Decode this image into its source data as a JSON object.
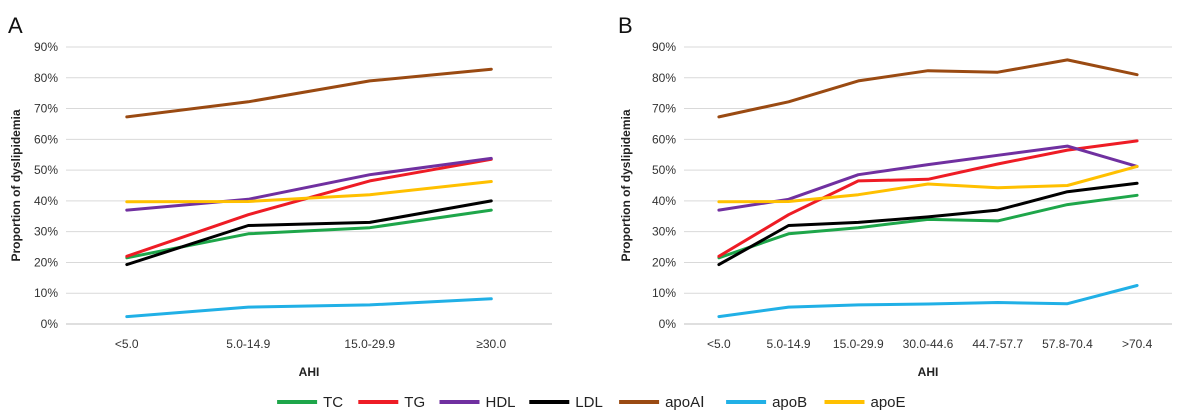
{
  "legend": [
    {
      "name": "TC",
      "color": "#1ea64a"
    },
    {
      "name": "TG",
      "color": "#ee1c25"
    },
    {
      "name": "HDL",
      "color": "#7030a0"
    },
    {
      "name": "LDL",
      "color": "#000000"
    },
    {
      "name": "apoAⅠ",
      "color": "#9a4a12"
    },
    {
      "name": "apoB",
      "color": "#21b0e6"
    },
    {
      "name": "apoE",
      "color": "#ffc000"
    }
  ],
  "chart_data": [
    {
      "panel": "A",
      "type": "line",
      "xlabel": "AHI",
      "ylabel": "Proportion of dyslipidemia",
      "ylim": [
        0,
        90
      ],
      "ytick_step": 10,
      "ytick_format": "percent",
      "grid": true,
      "legend_placement": "bottom",
      "categories": [
        "<5.0",
        "5.0-14.9",
        "15.0-29.9",
        "≥30.0"
      ],
      "series": [
        {
          "name": "TC",
          "color": "#1ea64a",
          "values": [
            21.5,
            29.3,
            31.3,
            37.0
          ]
        },
        {
          "name": "TG",
          "color": "#ee1c25",
          "values": [
            22.0,
            35.5,
            46.5,
            53.5
          ]
        },
        {
          "name": "HDL",
          "color": "#7030a0",
          "values": [
            37.0,
            40.5,
            48.5,
            53.8
          ]
        },
        {
          "name": "LDL",
          "color": "#000000",
          "values": [
            19.3,
            32.0,
            33.0,
            40.0
          ]
        },
        {
          "name": "apoAⅠ",
          "color": "#9a4a12",
          "values": [
            67.3,
            72.2,
            79.0,
            82.8
          ]
        },
        {
          "name": "apoB",
          "color": "#21b0e6",
          "values": [
            2.4,
            5.5,
            6.2,
            8.2
          ]
        },
        {
          "name": "apoE",
          "color": "#ffc000",
          "values": [
            39.7,
            39.8,
            42.0,
            46.3
          ]
        }
      ]
    },
    {
      "panel": "B",
      "type": "line",
      "xlabel": "AHI",
      "ylabel": "Proportion of dyslipidemia",
      "ylim": [
        0,
        90
      ],
      "ytick_step": 10,
      "ytick_format": "percent",
      "grid": true,
      "legend_placement": "bottom",
      "categories": [
        "<5.0",
        "5.0-14.9",
        "15.0-29.9",
        "30.0-44.6",
        "44.7-57.7",
        "57.8-70.4",
        ">70.4"
      ],
      "series": [
        {
          "name": "TC",
          "color": "#1ea64a",
          "values": [
            21.5,
            29.3,
            31.3,
            34.0,
            33.5,
            38.8,
            41.8
          ]
        },
        {
          "name": "TG",
          "color": "#ee1c25",
          "values": [
            22.0,
            35.5,
            46.5,
            47.0,
            52.0,
            56.5,
            59.5
          ]
        },
        {
          "name": "HDL",
          "color": "#7030a0",
          "values": [
            37.0,
            40.5,
            48.5,
            51.8,
            54.8,
            57.8,
            51.2
          ]
        },
        {
          "name": "LDL",
          "color": "#000000",
          "values": [
            19.3,
            32.0,
            33.0,
            34.8,
            37.0,
            43.0,
            45.7
          ]
        },
        {
          "name": "apoAⅠ",
          "color": "#9a4a12",
          "values": [
            67.3,
            72.2,
            79.0,
            82.3,
            81.8,
            85.8,
            81.0
          ]
        },
        {
          "name": "apoB",
          "color": "#21b0e6",
          "values": [
            2.4,
            5.5,
            6.2,
            6.5,
            7.0,
            6.6,
            12.5
          ]
        },
        {
          "name": "apoE",
          "color": "#ffc000",
          "values": [
            39.7,
            39.8,
            42.0,
            45.5,
            44.3,
            45.0,
            51.2
          ]
        }
      ]
    }
  ]
}
